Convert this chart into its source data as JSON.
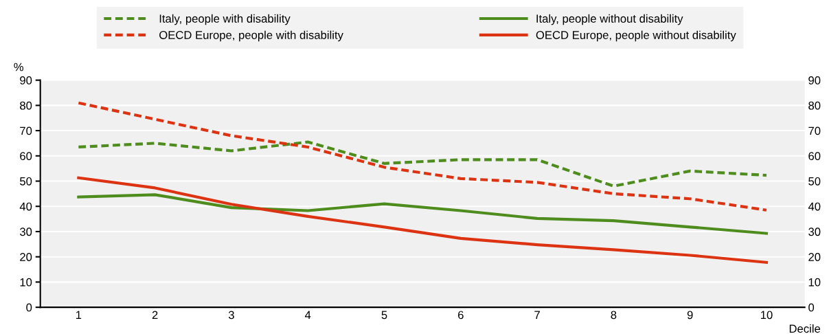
{
  "chart_data": {
    "type": "line",
    "xlabel": "Decile",
    "ylabel": "%",
    "categories": [
      "1",
      "2",
      "3",
      "4",
      "5",
      "6",
      "7",
      "8",
      "9",
      "10"
    ],
    "series": [
      {
        "name": "Italy, people with disability",
        "color": "#4e8c1e",
        "line_style": "dashed",
        "values": [
          63.5,
          65,
          62,
          65.5,
          57,
          58.5,
          58.5,
          48,
          54,
          52.3
        ]
      },
      {
        "name": "OECD Europe, people with disability",
        "color": "#dc3412",
        "line_style": "dashed",
        "values": [
          81,
          74.5,
          68,
          63.5,
          55.5,
          51,
          49.5,
          45,
          43,
          38.5
        ]
      },
      {
        "name": "Italy, people without disability",
        "color": "#4e8c1e",
        "line_style": "solid",
        "values": [
          43.7,
          44.6,
          39.5,
          38.3,
          41,
          38.3,
          35.2,
          34.3,
          31.8,
          29.3
        ]
      },
      {
        "name": "OECD Europe, people without disability",
        "color": "#dc3412",
        "line_style": "solid",
        "values": [
          51.3,
          47.3,
          40.8,
          36,
          31.8,
          27.3,
          24.8,
          22.8,
          20.6,
          17.8
        ]
      }
    ],
    "ylim": [
      0,
      90
    ],
    "yticks": [
      0,
      10,
      20,
      30,
      40,
      50,
      60,
      70,
      80,
      90
    ],
    "y2lim": [
      0,
      90
    ],
    "y2ticks": [
      0,
      10,
      20,
      30,
      40,
      50,
      60,
      70,
      80,
      90
    ],
    "grid": true,
    "legend": "top",
    "marker": "none"
  }
}
